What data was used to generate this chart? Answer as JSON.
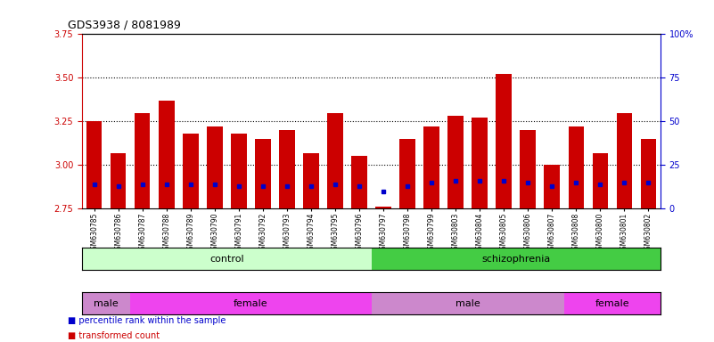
{
  "title": "GDS3938 / 8081989",
  "samples": [
    "GSM630785",
    "GSM630786",
    "GSM630787",
    "GSM630788",
    "GSM630789",
    "GSM630790",
    "GSM630791",
    "GSM630792",
    "GSM630793",
    "GSM630794",
    "GSM630795",
    "GSM630796",
    "GSM630797",
    "GSM630798",
    "GSM630799",
    "GSM630803",
    "GSM630804",
    "GSM630805",
    "GSM630806",
    "GSM630807",
    "GSM630808",
    "GSM630800",
    "GSM630801",
    "GSM630802"
  ],
  "transformed_count": [
    3.25,
    3.07,
    3.3,
    3.37,
    3.18,
    3.22,
    3.18,
    3.15,
    3.2,
    3.07,
    3.3,
    3.05,
    2.76,
    3.15,
    3.22,
    3.28,
    3.27,
    3.52,
    3.2,
    3.0,
    3.22,
    3.07,
    3.3,
    3.15
  ],
  "percentile_rank": [
    14,
    13,
    14,
    14,
    14,
    14,
    13,
    13,
    13,
    13,
    14,
    13,
    10,
    13,
    15,
    16,
    16,
    16,
    15,
    13,
    15,
    14,
    15,
    15
  ],
  "ylim_left": [
    2.75,
    3.75
  ],
  "ylim_right": [
    0,
    100
  ],
  "yticks_left": [
    2.75,
    3.0,
    3.25,
    3.5,
    3.75
  ],
  "yticks_right": [
    0,
    25,
    50,
    75,
    100
  ],
  "bar_color": "#cc0000",
  "dot_color": "#0000cc",
  "plot_bg": "#ffffff",
  "disease_state_groups": [
    {
      "label": "control",
      "start": 0,
      "end": 12,
      "color": "#ccffcc"
    },
    {
      "label": "schizophrenia",
      "start": 12,
      "end": 24,
      "color": "#44cc44"
    }
  ],
  "gender_groups": [
    {
      "label": "male",
      "start": 0,
      "end": 2,
      "color": "#cc88cc"
    },
    {
      "label": "female",
      "start": 2,
      "end": 12,
      "color": "#ee44ee"
    },
    {
      "label": "male",
      "start": 12,
      "end": 20,
      "color": "#cc88cc"
    },
    {
      "label": "female",
      "start": 20,
      "end": 24,
      "color": "#ee44ee"
    }
  ],
  "grid_yticks": [
    3.0,
    3.25,
    3.5
  ],
  "legend_items": [
    {
      "color": "#cc0000",
      "label": "transformed count"
    },
    {
      "color": "#0000cc",
      "label": "percentile rank within the sample"
    }
  ]
}
